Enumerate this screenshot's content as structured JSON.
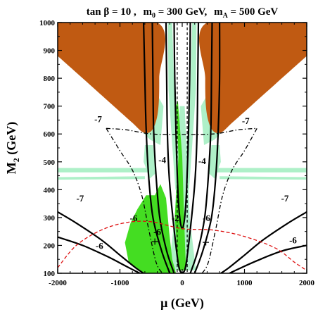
{
  "chart_data": {
    "type": "contour",
    "title": "tan β = 10 ,  m0 = 300 GeV,  mA = 500 GeV",
    "title_parts": {
      "tanb": "tan β = 10 ,",
      "m0_sym": "m",
      "m0_sub": "0",
      "m0_val": " = 300 GeV,",
      "mA_sym": "m",
      "mA_sub": "A",
      "mA_val": " = 500 GeV"
    },
    "xlabel": "μ (GeV)",
    "ylabel_main": "M",
    "ylabel_sub": "2",
    "ylabel_unit": " (GeV)",
    "xlim": [
      -2000,
      2000
    ],
    "ylim": [
      100,
      1000
    ],
    "x_ticks": [
      -2000,
      -1000,
      0,
      1000,
      2000
    ],
    "x_tick_labels": [
      "-2000",
      "-1000",
      "0",
      "1000",
      "2000"
    ],
    "y_ticks": [
      100,
      200,
      300,
      400,
      500,
      600,
      700,
      800,
      900,
      1000
    ],
    "y_tick_labels": [
      "100",
      "200",
      "300",
      "400",
      "500",
      "600",
      "700",
      "800",
      "900",
      "1000"
    ],
    "contour_labels": [
      {
        "text": "-7",
        "x": -1350,
        "y": 655
      },
      {
        "text": "-7",
        "x": 1020,
        "y": 648
      },
      {
        "text": "-4",
        "x": -320,
        "y": 508
      },
      {
        "text": "-4",
        "x": 320,
        "y": 504
      },
      {
        "text": "-7",
        "x": -1640,
        "y": 370
      },
      {
        "text": "-7",
        "x": 1650,
        "y": 370
      },
      {
        "text": "-2",
        "x": -110,
        "y": 300
      },
      {
        "text": "-6",
        "x": -780,
        "y": 300
      },
      {
        "text": "-6",
        "x": -400,
        "y": 250
      },
      {
        "text": "-6",
        "x": 390,
        "y": 300
      },
      {
        "text": "-6",
        "x": -1330,
        "y": 200
      },
      {
        "text": "-6",
        "x": 1780,
        "y": 220
      }
    ],
    "markers": [
      {
        "symbol": "+",
        "x": -440,
        "y": 215
      },
      {
        "symbol": "+",
        "x": 380,
        "y": 213
      }
    ],
    "colors": {
      "excluded_brown": "#c05a12",
      "light_green": "#aef0c8",
      "bright_green": "#44dd22",
      "red_dashed": "#dd1111",
      "contour": "#000000"
    }
  }
}
